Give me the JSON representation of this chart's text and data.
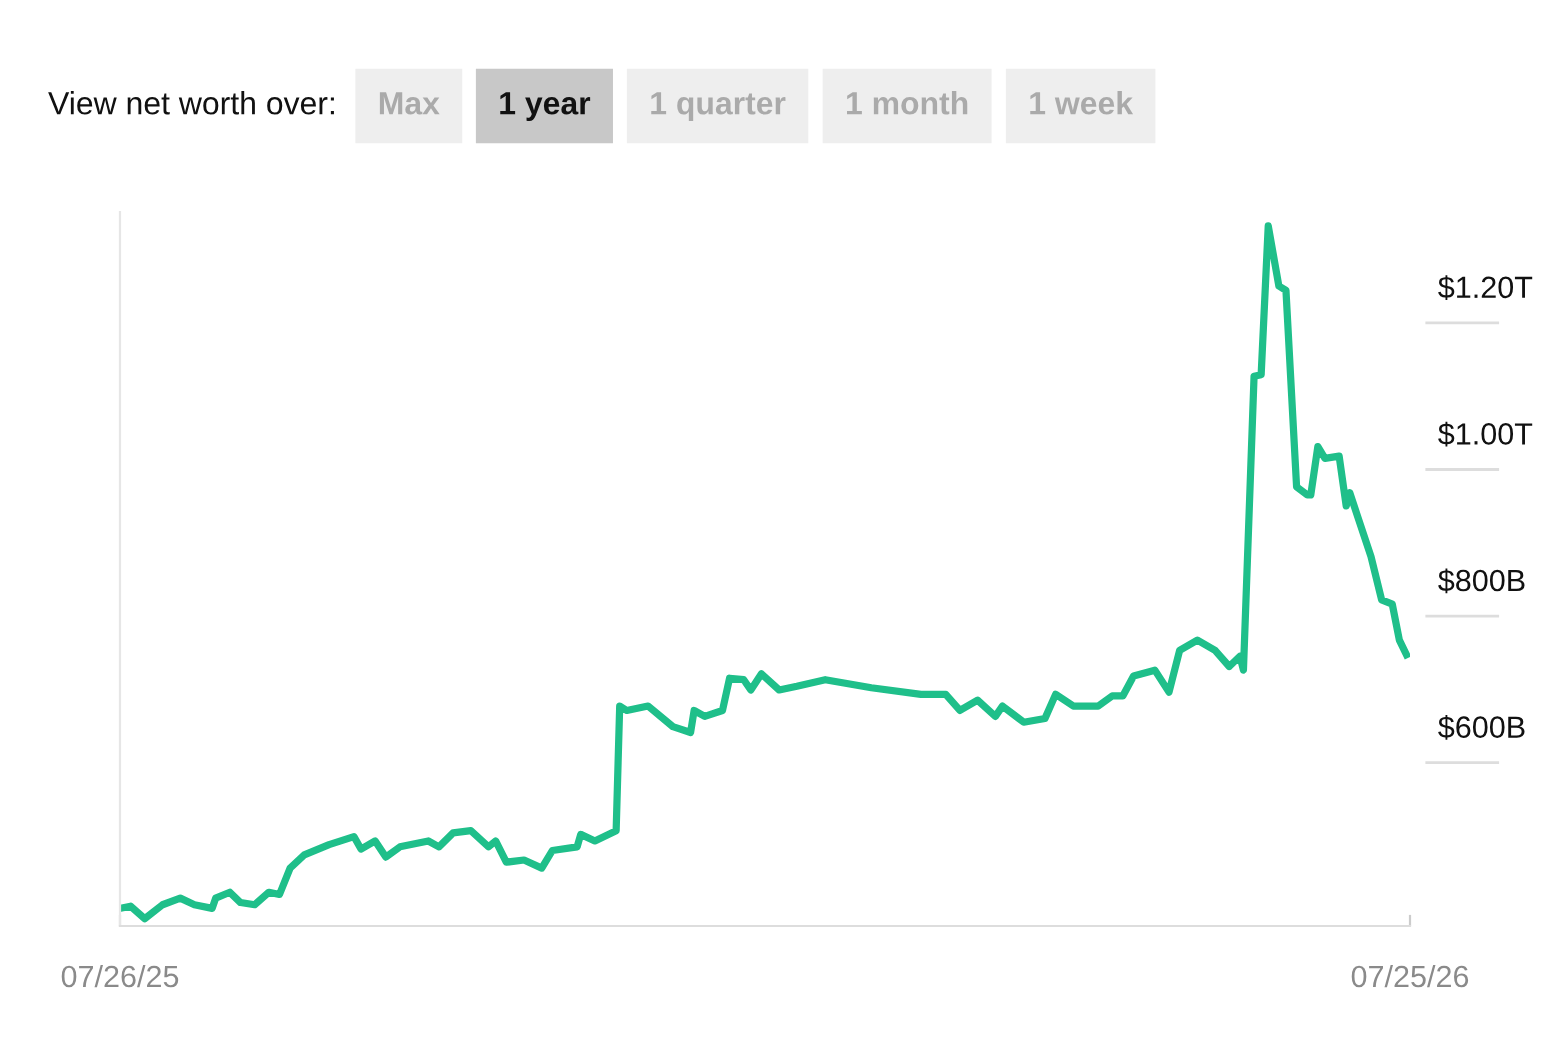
{
  "chart_data": {
    "type": "line",
    "annotations": [
      "View net worth over:",
      "Max",
      "1 year",
      "1 quarter",
      "1 month",
      "1 week"
    ],
    "x": [
      "2025-07-26",
      "2025-07-29",
      "2025-08-02",
      "2025-08-07",
      "2025-08-12",
      "2025-08-16",
      "2025-08-21",
      "2025-08-22",
      "2025-08-26",
      "2025-08-29",
      "2025-09-02",
      "2025-09-06",
      "2025-09-09",
      "2025-09-12",
      "2025-09-16",
      "2025-09-23",
      "2025-09-30",
      "2025-10-02",
      "2025-10-06",
      "2025-10-09",
      "2025-10-13",
      "2025-10-21",
      "2025-10-24",
      "2025-10-28",
      "2025-11-02",
      "2025-11-07",
      "2025-11-09",
      "2025-11-12",
      "2025-11-17",
      "2025-11-22",
      "2025-11-25",
      "2025-12-02",
      "2025-12-03",
      "2025-12-07",
      "2025-12-13",
      "2025-12-14",
      "2025-12-16",
      "2025-12-22",
      "2025-12-29",
      "2026-01-03",
      "2026-01-04",
      "2026-01-07",
      "2026-01-12",
      "2026-01-14",
      "2026-01-18",
      "2026-01-20",
      "2026-01-23",
      "2026-01-28",
      "2026-02-02",
      "2026-02-10",
      "2026-02-23",
      "2026-03-09",
      "2026-03-16",
      "2026-03-20",
      "2026-03-25",
      "2026-03-30",
      "2026-04-01",
      "2026-04-07",
      "2026-04-13",
      "2026-04-16",
      "2026-04-21",
      "2026-04-28",
      "2026-05-02",
      "2026-05-05",
      "2026-05-08",
      "2026-05-14",
      "2026-05-18",
      "2026-05-21",
      "2026-05-26",
      "2026-05-31",
      "2026-06-04",
      "2026-06-07",
      "2026-06-08",
      "2026-06-11",
      "2026-06-13",
      "2026-06-15",
      "2026-06-18",
      "2026-06-20",
      "2026-06-23",
      "2026-06-26",
      "2026-06-27",
      "2026-06-29",
      "2026-07-01",
      "2026-07-05",
      "2026-07-07",
      "2026-07-08",
      "2026-07-10",
      "2026-07-14",
      "2026-07-17",
      "2026-07-20",
      "2026-07-22",
      "2026-07-24"
    ],
    "series": [
      {
        "color": "#1fbf8a",
        "values": [
          352000000000.0,
          355000000000.0,
          338000000000.0,
          357000000000.0,
          366000000000.0,
          357000000000.0,
          352000000000.0,
          366000000000.0,
          374000000000.0,
          360000000000.0,
          357000000000.0,
          374000000000.0,
          371000000000.0,
          407000000000.0,
          425000000000.0,
          439000000000.0,
          450000000000.0,
          433000000000.0,
          444000000000.0,
          422000000000.0,
          436000000000.0,
          444000000000.0,
          436000000000.0,
          455000000000.0,
          458000000000.0,
          436000000000.0,
          444000000000.0,
          415000000000.0,
          418000000000.0,
          407000000000.0,
          431000000000.0,
          436000000000.0,
          453000000000.0,
          444000000000.0,
          458000000000.0,
          628000000000.0,
          622000000000.0,
          628000000000.0,
          600000000000.0,
          592000000000.0,
          622000000000.0,
          614000000000.0,
          622000000000.0,
          666000000000.0,
          664000000000.0,
          650000000000.0,
          672000000000.0,
          650000000000.0,
          655000000000.0,
          664000000000.0,
          653000000000.0,
          644000000000.0,
          644000000000.0,
          622000000000.0,
          636000000000.0,
          614000000000.0,
          628000000000.0,
          606000000000.0,
          611000000000.0,
          644000000000.0,
          628000000000.0,
          628000000000.0,
          642000000000.0,
          642000000000.0,
          669000000000.0,
          677000000000.0,
          647000000000.0,
          704000000000.0,
          718000000000.0,
          704000000000.0,
          682000000000.0,
          696000000000.0,
          677000000000.0,
          1078000000000.0,
          1080000000000.0,
          1283000000000.0,
          1201000000000.0,
          1195000000000.0,
          927000000000.0,
          916000000000.0,
          916000000000.0,
          982000000000.0,
          966000000000.0,
          969000000000.0,
          901000000000.0,
          919000000000.0,
          890000000000.0,
          832000000000.0,
          773000000000.0,
          767000000000.0,
          718000000000.0,
          698000000000.0
        ]
      }
    ],
    "xlim": [
      "2025-07-26",
      "2026-07-25"
    ],
    "xticks": [
      {
        "value": "2025-07-26",
        "label": "07/26/25"
      },
      {
        "value": "2026-07-25",
        "label": "07/25/26"
      }
    ],
    "ylim": [
      328000000000.0,
      1302000000000.0
    ],
    "yticks": [
      {
        "value": 600000000000.0,
        "label": "$600B"
      },
      {
        "value": 800000000000.0,
        "label": "$800B"
      },
      {
        "value": 1000000000000.0,
        "label": "$1.00T"
      },
      {
        "value": 1200000000000.0,
        "label": "$1.20T"
      }
    ],
    "grid": false,
    "marker": "none",
    "line_style": "solid"
  }
}
